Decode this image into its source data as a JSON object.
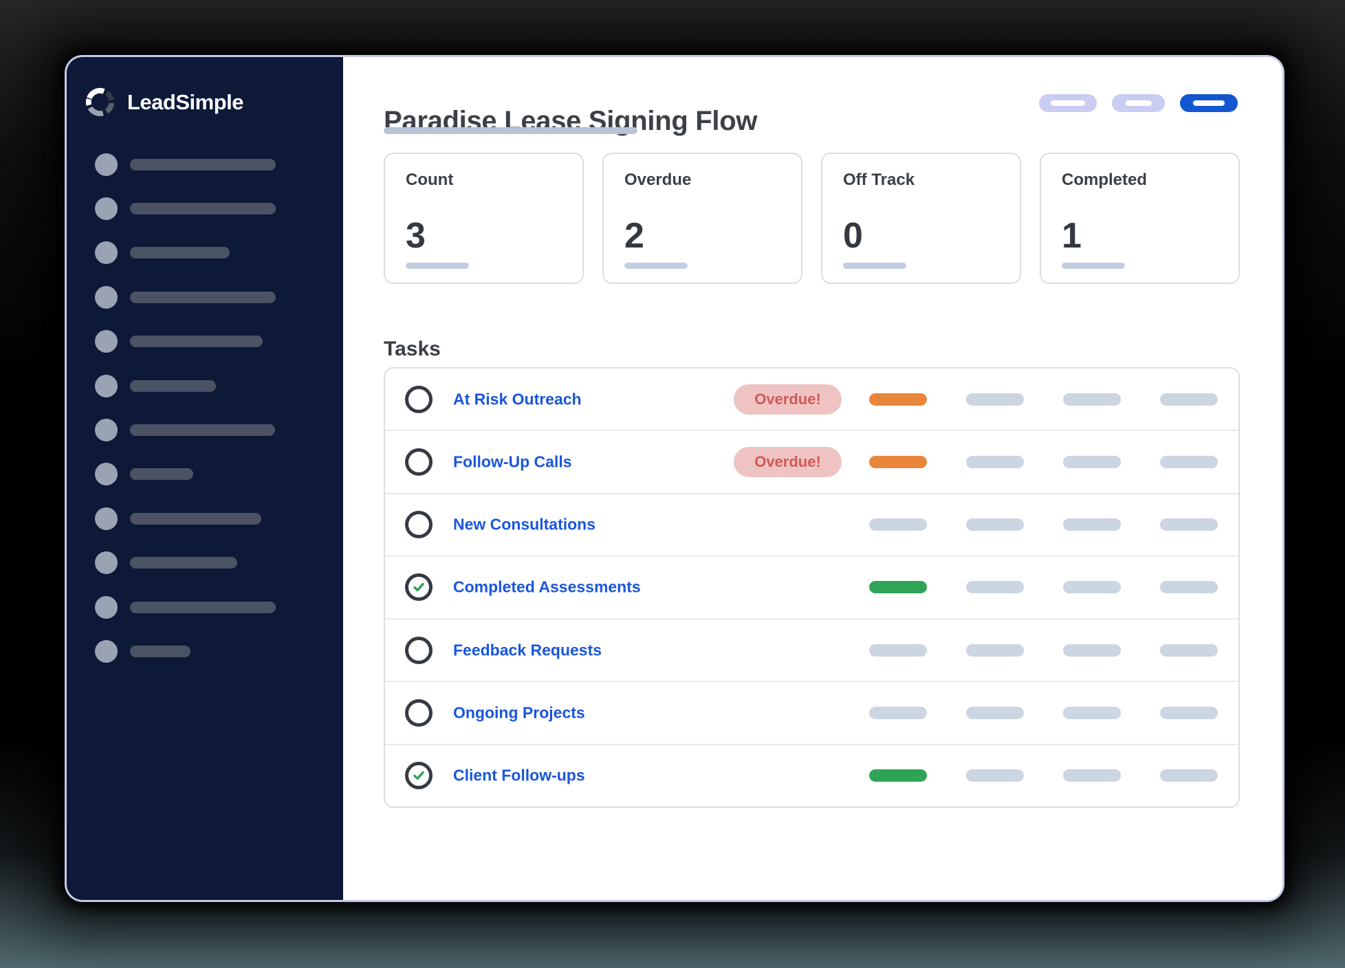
{
  "brand": {
    "name": "LeadSimple"
  },
  "header": {
    "title": "Paradise Lease Signing Flow",
    "pills": [
      {
        "style": "light",
        "inner_width": 50
      },
      {
        "style": "light",
        "inner_width": 38
      },
      {
        "style": "primary",
        "inner_width": 46
      }
    ]
  },
  "stats": [
    {
      "label": "Count",
      "value": "3"
    },
    {
      "label": "Overdue",
      "value": "2"
    },
    {
      "label": "Off Track",
      "value": "0"
    },
    {
      "label": "Completed",
      "value": "1"
    }
  ],
  "tasks": {
    "heading": "Tasks",
    "items": [
      {
        "label": "At Risk Outreach",
        "checked": false,
        "badge": "Overdue!",
        "bars": [
          "orange",
          "gray",
          "gray",
          "gray"
        ]
      },
      {
        "label": "Follow-Up Calls",
        "checked": false,
        "badge": "Overdue!",
        "bars": [
          "orange",
          "gray",
          "gray",
          "gray"
        ]
      },
      {
        "label": "New Consultations",
        "checked": false,
        "badge": null,
        "bars": [
          "gray",
          "gray",
          "gray",
          "gray"
        ]
      },
      {
        "label": "Completed Assessments",
        "checked": true,
        "badge": null,
        "bars": [
          "green",
          "gray",
          "gray",
          "gray"
        ]
      },
      {
        "label": "Feedback Requests",
        "checked": false,
        "badge": null,
        "bars": [
          "gray",
          "gray",
          "gray",
          "gray"
        ]
      },
      {
        "label": "Ongoing Projects",
        "checked": false,
        "badge": null,
        "bars": [
          "gray",
          "gray",
          "gray",
          "gray"
        ]
      },
      {
        "label": "Client Follow-ups",
        "checked": true,
        "badge": null,
        "bars": [
          "green",
          "gray",
          "gray",
          "gray"
        ]
      }
    ]
  },
  "sidebar": {
    "item_bar_widths": [
      212,
      212,
      145,
      212,
      193,
      125,
      211,
      92,
      191,
      156,
      212,
      88
    ]
  },
  "colors": {
    "accent_blue": "#1a56db",
    "pill_blue": "#1356d0",
    "pill_lavender": "#c9cdf1",
    "orange": "#e8863c",
    "green": "#2fa456",
    "gray_bar": "#ccd5e2",
    "badge_bg": "#f0c3c3",
    "badge_text": "#cf5a56",
    "check_green": "#2ea34f",
    "sidebar_bg": "#0d1937"
  }
}
